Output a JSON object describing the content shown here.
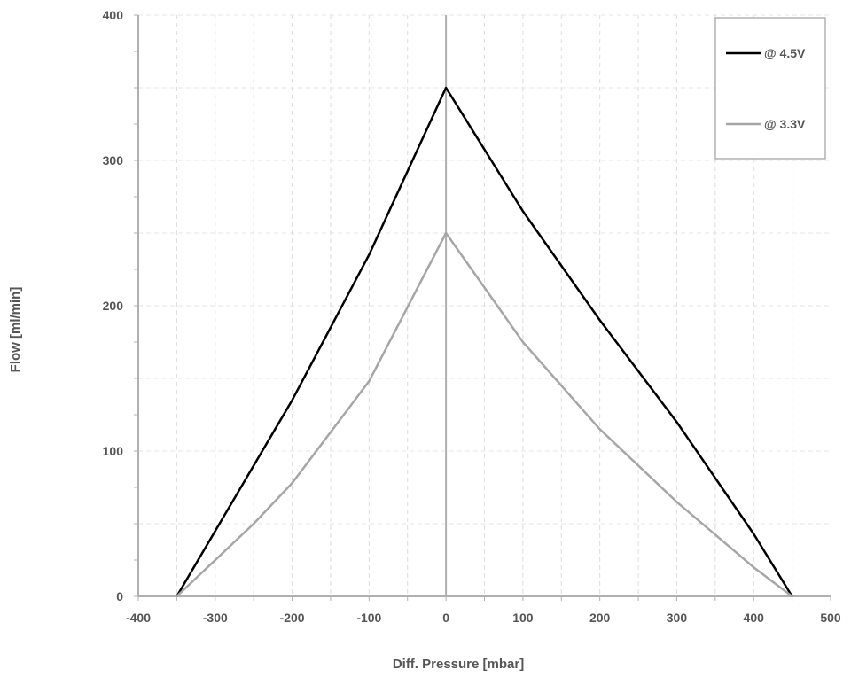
{
  "chart_data": {
    "type": "line",
    "title": "",
    "xlabel": "Diff. Pressure [mbar]",
    "ylabel": "Flow [ml/min]",
    "xlim": [
      -400,
      500
    ],
    "ylim": [
      0,
      400
    ],
    "x_ticks": [
      -400,
      -300,
      -200,
      -100,
      0,
      100,
      200,
      300,
      400,
      500
    ],
    "y_ticks": [
      0,
      100,
      200,
      300,
      400
    ],
    "grid": "dashed",
    "legend_position": "top-right",
    "series": [
      {
        "name": "@ 4.5V",
        "color": "#000000",
        "x": [
          -350,
          -250,
          -200,
          -100,
          0,
          100,
          200,
          300,
          400,
          450
        ],
        "y": [
          0,
          90,
          135,
          235,
          350,
          265,
          190,
          120,
          43,
          0
        ]
      },
      {
        "name": "@ 3.3V",
        "color": "#a6a6a6",
        "x": [
          -350,
          -250,
          -200,
          -100,
          0,
          100,
          200,
          300,
          400,
          450
        ],
        "y": [
          0,
          50,
          78,
          148,
          250,
          175,
          115,
          65,
          20,
          0
        ]
      }
    ]
  }
}
